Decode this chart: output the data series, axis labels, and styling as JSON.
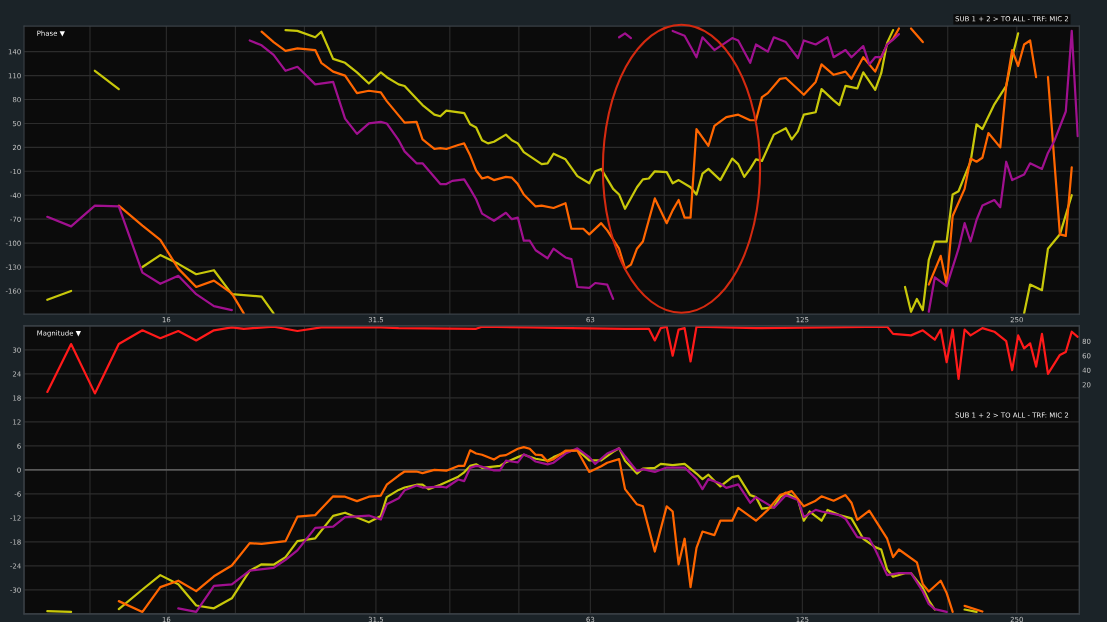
{
  "chart_data": [
    {
      "type": "line",
      "title": "Phase ▼",
      "annotations": [
        "SUB 1 + 2 > TO ALL - TRF: MIC 2"
      ],
      "log": "x",
      "grid": true,
      "xlim": [
        10.1,
        306
      ],
      "xticks": [
        {
          "value": 12.5,
          "label": null
        },
        16,
        {
          "value": 20,
          "label": null
        },
        {
          "value": 25,
          "label": null
        },
        31.5,
        {
          "value": 40,
          "label": null
        },
        {
          "value": 50,
          "label": null
        },
        63,
        {
          "value": 80,
          "label": null
        },
        {
          "value": 100,
          "label": null
        },
        125,
        {
          "value": 160,
          "label": null
        },
        {
          "value": 200,
          "label": null
        },
        250
      ],
      "ylim": [
        -189,
        172
      ],
      "yticks": [
        140,
        110,
        80,
        50,
        20,
        -10,
        -40,
        -70,
        -100,
        -130,
        -160
      ],
      "series": [
        {
          "color": "#c8c80a",
          "x": [
            10.89,
            11.76,
            12.2,
            12.7,
            13.72,
            14.2,
            14.81,
            15.69,
            16.63,
            17.62,
            18.66,
            19.77,
            21.77,
            22.63,
            23.0,
            23.52,
            24.44,
            25.89,
            26.4,
            27.43,
            28.51,
            29.63,
            30.79,
            32,
            32.62,
            33.9,
            34.56,
            35.92,
            36.62,
            38.05,
            38.79,
            39.55,
            41.9,
            42.71,
            43.55,
            44.39,
            45.25,
            46.13,
            47.95,
            48.88,
            49.83,
            50.8,
            51.79,
            53.82,
            54.86,
            55.93,
            58.13,
            60.41,
            62.78,
            64,
            65.24,
            67.81,
            69.13,
            70.47,
            73.24,
            74.66,
            76.11,
            77.59,
            80.63,
            82.2,
            83.8,
            87.09,
            88.78,
            90.51,
            92.27,
            95.89,
            99.65,
            101.6,
            103.6,
            105.6,
            107.6,
            109.7,
            114.0,
            118.5,
            120.8,
            123.2,
            125.6,
            130.5,
            133.0,
            138.3,
            140.9,
            143.7,
            149.3,
            152.2,
            158.2,
            161.3,
            164.4,
            167.6,
            171,
            174.2,
            177.6,
            181.0,
            184.5,
            188.1,
            191.8,
            199.3,
            203.2,
            207.1,
            211.2,
            215.3,
            219.5,
            223.7,
            232.5,
            241.6,
            246.3,
            251.1,
            253,
            256,
            261.0,
            271.2,
            276.5,
            287.4,
            298.6
          ],
          "values": [
            -171,
            -160,
            null,
            116,
            93,
            null,
            -130,
            -115,
            -126,
            -139,
            -134,
            -164,
            -167,
            -188,
            null,
            167,
            166,
            158,
            165,
            131,
            126,
            114,
            100,
            114,
            108,
            99,
            97,
            81,
            73,
            61,
            59,
            66,
            63,
            49,
            45,
            29,
            25,
            27,
            36,
            29,
            25,
            14,
            9,
            -1,
            0,
            12,
            5,
            -16,
            -25,
            -10,
            -7,
            -32,
            -39,
            -57,
            -30,
            -20,
            -19,
            -10,
            -11,
            -25,
            -21,
            -30,
            -39,
            -13,
            -7,
            -21,
            6,
            -1,
            -17,
            -7,
            5,
            3,
            36,
            44,
            30,
            40,
            61,
            64,
            93,
            79,
            73,
            97,
            94,
            114,
            92,
            113,
            151,
            167,
            null,
            -155,
            -186,
            -170,
            -184,
            -121,
            -98,
            -98,
            -39,
            -35,
            -16,
            2,
            49,
            43,
            74,
            97,
            133,
            163,
            null,
            -188,
            -152,
            -159,
            -107,
            -89,
            -40
          ]
        },
        {
          "color": "#ff6600",
          "x": [
            13.72,
            14.81,
            15.69,
            16.63,
            17.62,
            18.66,
            19.77,
            20.55,
            21.1,
            21.77,
            22.63,
            23.52,
            24.44,
            25.89,
            26.4,
            27.43,
            28.51,
            29.63,
            30.79,
            32,
            32.62,
            34.56,
            35.92,
            36.62,
            38.05,
            38.79,
            39.55,
            41.1,
            41.9,
            42.71,
            43.55,
            44.39,
            45.25,
            46.13,
            47.95,
            48.88,
            49.83,
            50.8,
            52.79,
            53.82,
            55.93,
            58.13,
            59.25,
            61.58,
            62.78,
            65.24,
            66.53,
            69.13,
            70.47,
            71.84,
            73.24,
            74.66,
            76.11,
            77.59,
            80.63,
            82.2,
            83.8,
            85.43,
            87.09,
            88.78,
            92.27,
            94.07,
            97.76,
            101.6,
            105.6,
            107.6,
            109.7,
            111.8,
            116.3,
            118.5,
            125.6,
            130.5,
            133.0,
            138.3,
            143.7,
            146.5,
            152.2,
            158.2,
            161.3,
            164.4,
            167.6,
            170.8,
            174.2,
            177.6,
            184.5,
            186,
            188.1,
            195.5,
            199.3,
            203.2,
            211.2,
            215.3,
            219.5,
            223.7,
            228.1,
            237.0,
            241.6,
            246.3,
            251.1,
            256,
            261.0,
            266.1,
            271,
            276.5,
            287.4,
            292.9,
            298.6
          ],
          "values": [
            -53,
            -78,
            -96,
            -132,
            -155,
            -147,
            -163,
            -188,
            null,
            165,
            152,
            141,
            144,
            142,
            126,
            115,
            110,
            88,
            91,
            89,
            78,
            51,
            52,
            30,
            18,
            19,
            18,
            23,
            25,
            10,
            -9,
            -19,
            -17,
            -21,
            -17,
            -18,
            -26,
            -39,
            -54,
            -53,
            -56,
            -50,
            -82,
            -82,
            -89,
            -75,
            -84,
            -107,
            -132,
            -127,
            -107,
            -98,
            -71,
            -44,
            -75,
            -59,
            -46,
            -68,
            -68,
            43,
            22,
            47,
            58,
            61,
            54,
            54,
            83,
            88,
            106,
            107,
            86,
            102,
            124,
            111,
            115,
            106,
            133,
            115,
            133,
            149,
            156,
            169,
            null,
            169,
            152,
            null,
            -152,
            -116,
            -152,
            -66,
            -32,
            6,
            2,
            7,
            38,
            20,
            97,
            142,
            122,
            149,
            154,
            108,
            null,
            108,
            -89,
            -91,
            -5
          ]
        },
        {
          "color": "#a0108f",
          "x": [
            10.89,
            11.76,
            12.7,
            13.72,
            14.81,
            15.69,
            16.63,
            17.62,
            18.66,
            19.77,
            20.4,
            20.95,
            21.77,
            22.63,
            23.52,
            24.44,
            25.89,
            27.43,
            28.51,
            29.63,
            30.79,
            32,
            32.62,
            33.9,
            34.56,
            35.92,
            36.62,
            38.79,
            39.55,
            40.32,
            41.9,
            42.71,
            43.55,
            44.39,
            46.13,
            47.95,
            48.88,
            49.83,
            50.8,
            51.79,
            52.79,
            54.86,
            55.93,
            58.13,
            59.25,
            60.41,
            62.78,
            64,
            66.53,
            67.81,
            68.5,
            69.13,
            70.47,
            71.84,
            77,
            82.2,
            85.43,
            88.78,
            90.51,
            94.07,
            99.65,
            101.6,
            105.6,
            107.6,
            111.8,
            114.0,
            118.5,
            123.2,
            125.6,
            130.5,
            135.6,
            138.3,
            143.7,
            146.5,
            152.2,
            155.2,
            158.2,
            161.3,
            164.4,
            167.6,
            170.8,
            180,
            188.1,
            191.8,
            199.3,
            207.1,
            211.2,
            215.3,
            219.5,
            223.7,
            232.5,
            237.0,
            241.6,
            246.3,
            256,
            261.0,
            271.2,
            276.5,
            281.9,
            292.9,
            298.6,
            304.4
          ],
          "values": [
            -67,
            -79,
            -53,
            -54,
            -137,
            -151,
            -141,
            -164,
            -179,
            -184,
            null,
            154,
            148,
            136,
            116,
            121,
            99,
            102,
            56,
            37,
            50,
            52,
            50,
            29,
            15,
            0,
            0,
            -26,
            -26,
            -22,
            -20,
            -32,
            -45,
            -63,
            -72,
            -62,
            -70,
            -68,
            -97,
            -97,
            -109,
            -119,
            -107,
            -118,
            -120,
            -155,
            -156,
            -150,
            -152,
            -170,
            null,
            158,
            163,
            157,
            null,
            166,
            160,
            133,
            158,
            142,
            157,
            154,
            126,
            149,
            140,
            158,
            152,
            132,
            154,
            149,
            158,
            133,
            142,
            133,
            147,
            124,
            133,
            133,
            149,
            155,
            162,
            null,
            -186,
            -143,
            -154,
            -107,
            -75,
            -98,
            -71,
            -53,
            -46,
            -55,
            2,
            -21,
            -14,
            0,
            -7,
            13,
            27,
            65,
            166,
            34
          ]
        }
      ]
    },
    {
      "type": "line",
      "title": "Magnitude ▼",
      "annotations": [
        "SUB 1 + 2 > TO ALL - TRF: MIC 2"
      ],
      "log": "x",
      "grid": true,
      "xlim": [
        10.1,
        306
      ],
      "xticks": [
        {
          "value": 12.5,
          "label": null
        },
        16,
        {
          "value": 20,
          "label": null
        },
        {
          "value": 25,
          "label": null
        },
        31.5,
        {
          "value": 40,
          "label": null
        },
        {
          "value": 50,
          "label": null
        },
        63,
        {
          "value": 80,
          "label": null
        },
        {
          "value": 100,
          "label": null
        },
        125,
        {
          "value": 160,
          "label": null
        },
        {
          "value": 200,
          "label": null
        },
        250
      ],
      "ylim": [
        -36,
        36
      ],
      "yticks": [
        30,
        24,
        18,
        12,
        6,
        0,
        -6,
        -12,
        -18,
        -24,
        -30
      ],
      "y2lim": [
        -296,
        101
      ],
      "y2ticks": [
        80,
        60,
        40,
        20
      ],
      "ref_lines": [
        {
          "axis": "y",
          "value": 0,
          "color": "#6e6e6e"
        }
      ],
      "series": [
        {
          "color": "#ff1a1a",
          "axis": "y2",
          "x": [
            10.89,
            11.76,
            12.7,
            13.72,
            14.81,
            15.69,
            16.63,
            17.62,
            18.66,
            19.77,
            20.55,
            22.63,
            24.44,
            26.4,
            32,
            33.9,
            43.55,
            44.39,
            51.79,
            59.25,
            70.47,
            76.11,
            77.59,
            79.1,
            80.63,
            82.2,
            83.8,
            85.43,
            87.09,
            88.78,
            107.6,
            164.4,
            167.6,
            177.6,
            184.5,
            191.8,
            195.5,
            199.3,
            203.2,
            207.1,
            211.2,
            215.3,
            223.7,
            232.5,
            241.6,
            246.3,
            251.1,
            256,
            261.0,
            266.1,
            271.2,
            276.5,
            287.4,
            292.9,
            298.6,
            304.4
          ],
          "values": [
            10,
            76,
            8,
            76,
            95,
            84,
            94,
            81,
            95,
            99,
            97,
            100,
            94,
            99,
            99,
            98,
            97,
            100,
            99,
            98,
            97,
            97,
            81,
            98,
            100,
            60,
            96,
            98,
            52,
            100,
            98,
            100,
            90,
            88,
            95,
            82,
            96,
            51,
            96,
            28,
            96,
            88,
            98,
            93,
            80,
            40,
            88,
            70,
            77,
            45,
            90,
            35,
            61,
            65,
            93,
            86
          ]
        },
        {
          "color": "#c8c80a",
          "x": [
            10.89,
            11.76,
            12.2,
            13.72,
            14.81,
            15.69,
            16.63,
            17.62,
            18.66,
            19.77,
            20.95,
            21.77,
            22.63,
            23.52,
            24.44,
            25.89,
            27.43,
            28.51,
            30.79,
            32,
            32.62,
            33.9,
            34.56,
            35.92,
            36.62,
            37.34,
            38.79,
            41.1,
            41.9,
            42.71,
            43.55,
            44.39,
            47.03,
            47.95,
            49.83,
            50.8,
            52.79,
            54.86,
            55.93,
            58.13,
            60.41,
            62.78,
            65.24,
            67.81,
            69.13,
            70.47,
            73.24,
            74.66,
            77.59,
            79.1,
            82.2,
            85.43,
            88.78,
            90.51,
            92.27,
            94.07,
            95.89,
            99.65,
            101.6,
            105.6,
            107.6,
            109.7,
            114.0,
            116.3,
            118.5,
            123.2,
            125.6,
            128,
            133.0,
            135.6,
            140.9,
            146.5,
            152.2,
            158.2,
            161.3,
            164.4,
            167.6,
            174.2,
            177.6,
            184.5,
            188.1,
            191.8,
            199.3,
            205,
            211.2,
            219.5
          ],
          "values": [
            -35.3,
            -35.5,
            null,
            -34.8,
            -29.9,
            -26.3,
            -28.6,
            -33.9,
            -34.6,
            -32.1,
            -25.2,
            -23.6,
            -23.7,
            -21.8,
            -17.8,
            -17.1,
            -11.5,
            -10.7,
            -13.1,
            -11.5,
            -6.8,
            -5.0,
            -4.4,
            -3.7,
            -3.7,
            -4.8,
            -3.7,
            -1.7,
            -0.6,
            1.0,
            1.4,
            0.5,
            1.0,
            1.9,
            3.2,
            3.8,
            2.8,
            2.3,
            3.2,
            4.5,
            5.0,
            2.4,
            2.4,
            4.5,
            5.4,
            2.3,
            -0.9,
            0.3,
            0.5,
            1.5,
            1.2,
            1.5,
            -0.9,
            -2.3,
            -1.2,
            -2.7,
            -4.1,
            -1.8,
            -1.5,
            -6.3,
            -6.8,
            -9.7,
            -9.3,
            -6.8,
            -5.7,
            -7.3,
            -12.7,
            -10.4,
            -12.7,
            -10.0,
            -11.3,
            -12.1,
            -17.2,
            -19.3,
            -19.9,
            -24.9,
            -26.7,
            -25.8,
            -25.8,
            -29.5,
            -32.6,
            -34.9,
            null,
            null,
            -34.9,
            -35.5
          ]
        },
        {
          "color": "#a0108f",
          "x": [
            16.63,
            17.62,
            18.66,
            19.77,
            20.95,
            22.63,
            23.52,
            24.44,
            25.89,
            27.43,
            28.51,
            30.79,
            32,
            32.62,
            33.9,
            34.56,
            35.92,
            36.62,
            38.79,
            39.55,
            41.1,
            41.9,
            42.71,
            43.55,
            44.39,
            46.13,
            47.03,
            47.95,
            49.83,
            50.8,
            51.79,
            52.79,
            54.86,
            55.93,
            58.13,
            60.41,
            62.78,
            64,
            66.53,
            69.13,
            70.47,
            73.24,
            74.66,
            77.59,
            80.63,
            85.43,
            88.78,
            90.51,
            92.27,
            95.89,
            97.76,
            101.6,
            105.6,
            107.6,
            114.0,
            118.5,
            123.2,
            125.6,
            130.5,
            133.0,
            140.9,
            143.7,
            149.3,
            155.2,
            158.2,
            164.4,
            170.8,
            177.6,
            184.5,
            188.1,
            191.8,
            199.3
          ],
          "values": [
            -34.6,
            -35.5,
            -29.0,
            -28.6,
            -25.2,
            -24.5,
            -22.5,
            -20.1,
            -14.5,
            -14.2,
            -11.8,
            -11.4,
            -12.4,
            -8.6,
            -7.1,
            -5.1,
            -3.9,
            -4.4,
            -4.2,
            -4.4,
            -2.4,
            -2.8,
            0.5,
            1.0,
            0.8,
            -0.1,
            -0.1,
            2.3,
            1.9,
            3.9,
            3.2,
            2.1,
            1.4,
            1.8,
            4.1,
            5.4,
            3.2,
            1.5,
            4.1,
            5.4,
            3.4,
            -0.3,
            0.2,
            -0.5,
            0.6,
            0.6,
            -2.3,
            -4.8,
            -2.3,
            -3.4,
            -4.5,
            -3.6,
            -8.2,
            -6.8,
            -9.5,
            -6.3,
            -7.5,
            -11.8,
            -10.0,
            -10.4,
            -11.3,
            -12.2,
            -16.8,
            -17.2,
            -19.9,
            -26.3,
            -25.8,
            -25.8,
            -30.4,
            -33.5,
            -34.8,
            -35.5
          ]
        },
        {
          "color": "#ff6600",
          "x": [
            13.72,
            14.81,
            15.69,
            16.63,
            17.62,
            18.66,
            19.77,
            20.95,
            21.77,
            23.52,
            24.44,
            25.89,
            27.43,
            28.51,
            29.63,
            30.79,
            32,
            32.62,
            33.9,
            34.56,
            35.92,
            36.62,
            38.05,
            39.55,
            41.1,
            41.9,
            42.71,
            43.55,
            44.39,
            46.13,
            47.03,
            47.95,
            49.83,
            50.8,
            51.79,
            52.79,
            53.82,
            54.86,
            55.93,
            58.13,
            60.41,
            62.78,
            65.24,
            66.53,
            69.13,
            70.47,
            73.24,
            74.66,
            77.59,
            80.63,
            82.2,
            83.8,
            85.43,
            87.09,
            88.78,
            90.51,
            94.07,
            95.89,
            99.65,
            101.6,
            107.6,
            111.8,
            116.3,
            120.8,
            125.6,
            130.5,
            133.0,
            138.3,
            143.7,
            146.5,
            149.3,
            155.2,
            164.4,
            167.6,
            170.8,
            181.0,
            184.5,
            188.1,
            195.5,
            199.3,
            203.2,
            207,
            211.2,
            223.7
          ],
          "values": [
            -32.8,
            -35.5,
            -29.3,
            -27.7,
            -30.3,
            -26.6,
            -23.9,
            -18.3,
            -18.5,
            -17.8,
            -11.7,
            -11.3,
            -6.6,
            -6.7,
            -7.8,
            -6.7,
            -6.4,
            -3.7,
            -1.4,
            -0.4,
            -0.4,
            -0.8,
            0,
            -0.2,
            1.0,
            1.0,
            4.9,
            4.1,
            3.8,
            2.6,
            3.5,
            3.7,
            5.3,
            5.7,
            5.3,
            3.8,
            3.7,
            2.1,
            2.7,
            4.8,
            4.8,
            -0.5,
            0.9,
            1.8,
            2.7,
            -4.8,
            -8.6,
            -9.1,
            -20.4,
            -9.1,
            -10.4,
            -23.6,
            -17.2,
            -29.3,
            -19.5,
            -15.4,
            -16.3,
            -12.7,
            -12.7,
            -9.5,
            -12.7,
            -10.0,
            -6.3,
            -5.3,
            -9.1,
            -7.7,
            -6.6,
            -7.7,
            -6.3,
            -8.2,
            -12.5,
            -10.2,
            -17.2,
            -21.8,
            -19.9,
            -23.1,
            -28.6,
            -30.4,
            -27.7,
            -30.8,
            -35.5,
            null,
            -34.0,
            -35.4
          ]
        }
      ]
    }
  ]
}
